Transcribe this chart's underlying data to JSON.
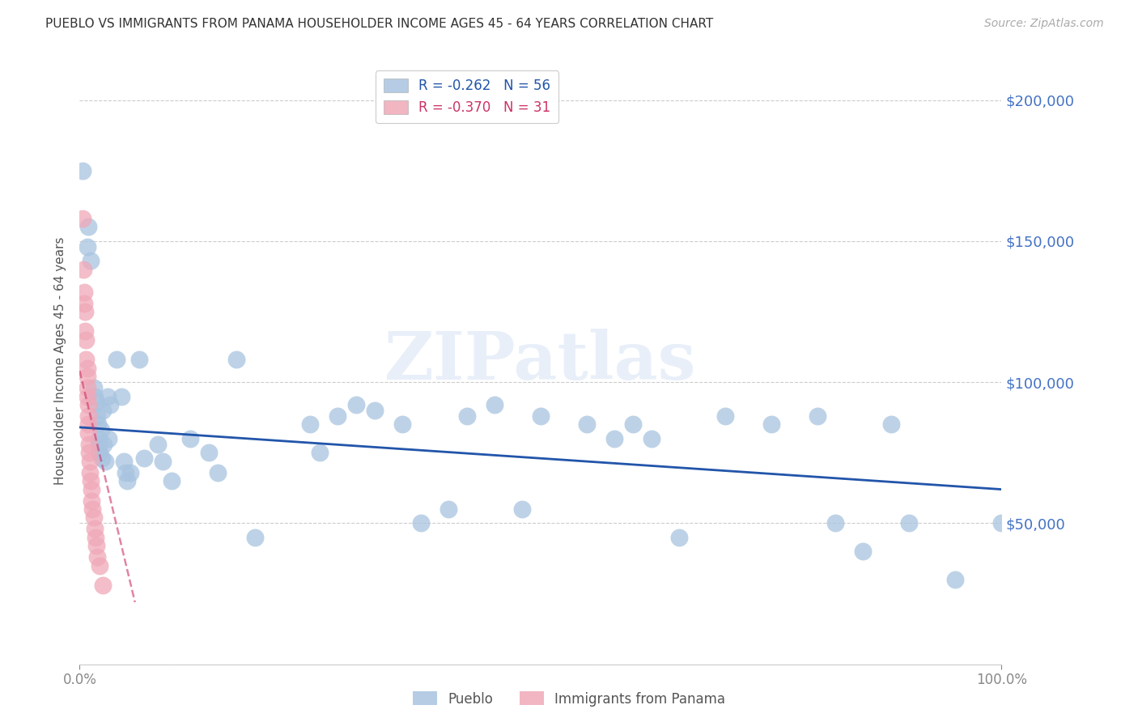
{
  "title": "PUEBLO VS IMMIGRANTS FROM PANAMA HOUSEHOLDER INCOME AGES 45 - 64 YEARS CORRELATION CHART",
  "source": "Source: ZipAtlas.com",
  "ylabel": "Householder Income Ages 45 - 64 years",
  "right_ytick_labels": [
    "$50,000",
    "$100,000",
    "$150,000",
    "$200,000"
  ],
  "right_ytick_positions": [
    50000,
    100000,
    150000,
    200000
  ],
  "pueblo_color": "#a8c4e0",
  "panama_color": "#f0a8b8",
  "trendline_pueblo_color": "#2255aa",
  "trendline_panama_color": "#cc3366",
  "watermark_text": "ZIPatlas",
  "background_color": "#ffffff",
  "grid_color": "#cccccc",
  "title_color": "#333333",
  "right_label_color": "#4472c4",
  "pueblo_scatter": [
    [
      0.003,
      175000
    ],
    [
      0.008,
      148000
    ],
    [
      0.009,
      155000
    ],
    [
      0.012,
      143000
    ],
    [
      0.015,
      98000
    ],
    [
      0.016,
      95000
    ],
    [
      0.018,
      93000
    ],
    [
      0.019,
      88000
    ],
    [
      0.02,
      85000
    ],
    [
      0.021,
      80000
    ],
    [
      0.021,
      78000
    ],
    [
      0.022,
      75000
    ],
    [
      0.023,
      83000
    ],
    [
      0.024,
      73000
    ],
    [
      0.025,
      90000
    ],
    [
      0.026,
      78000
    ],
    [
      0.028,
      72000
    ],
    [
      0.03,
      95000
    ],
    [
      0.031,
      80000
    ],
    [
      0.033,
      92000
    ],
    [
      0.04,
      108000
    ],
    [
      0.045,
      95000
    ],
    [
      0.048,
      72000
    ],
    [
      0.05,
      68000
    ],
    [
      0.051,
      65000
    ],
    [
      0.055,
      68000
    ],
    [
      0.065,
      108000
    ],
    [
      0.07,
      73000
    ],
    [
      0.085,
      78000
    ],
    [
      0.09,
      72000
    ],
    [
      0.1,
      65000
    ],
    [
      0.12,
      80000
    ],
    [
      0.14,
      75000
    ],
    [
      0.15,
      68000
    ],
    [
      0.17,
      108000
    ],
    [
      0.19,
      45000
    ],
    [
      0.25,
      85000
    ],
    [
      0.26,
      75000
    ],
    [
      0.28,
      88000
    ],
    [
      0.3,
      92000
    ],
    [
      0.32,
      90000
    ],
    [
      0.35,
      85000
    ],
    [
      0.37,
      50000
    ],
    [
      0.4,
      55000
    ],
    [
      0.42,
      88000
    ],
    [
      0.45,
      92000
    ],
    [
      0.48,
      55000
    ],
    [
      0.5,
      88000
    ],
    [
      0.55,
      85000
    ],
    [
      0.58,
      80000
    ],
    [
      0.6,
      85000
    ],
    [
      0.62,
      80000
    ],
    [
      0.65,
      45000
    ],
    [
      0.7,
      88000
    ],
    [
      0.75,
      85000
    ],
    [
      0.8,
      88000
    ],
    [
      0.82,
      50000
    ],
    [
      0.85,
      40000
    ],
    [
      0.88,
      85000
    ],
    [
      0.9,
      50000
    ],
    [
      0.95,
      30000
    ],
    [
      1.0,
      50000
    ]
  ],
  "panama_scatter": [
    [
      0.003,
      158000
    ],
    [
      0.004,
      140000
    ],
    [
      0.005,
      132000
    ],
    [
      0.005,
      128000
    ],
    [
      0.006,
      125000
    ],
    [
      0.006,
      118000
    ],
    [
      0.007,
      115000
    ],
    [
      0.007,
      108000
    ],
    [
      0.008,
      105000
    ],
    [
      0.008,
      102000
    ],
    [
      0.008,
      98000
    ],
    [
      0.008,
      95000
    ],
    [
      0.009,
      92000
    ],
    [
      0.009,
      88000
    ],
    [
      0.009,
      85000
    ],
    [
      0.009,
      82000
    ],
    [
      0.01,
      78000
    ],
    [
      0.01,
      75000
    ],
    [
      0.011,
      72000
    ],
    [
      0.011,
      68000
    ],
    [
      0.012,
      65000
    ],
    [
      0.013,
      62000
    ],
    [
      0.013,
      58000
    ],
    [
      0.014,
      55000
    ],
    [
      0.015,
      52000
    ],
    [
      0.016,
      48000
    ],
    [
      0.017,
      45000
    ],
    [
      0.018,
      42000
    ],
    [
      0.019,
      38000
    ],
    [
      0.022,
      35000
    ],
    [
      0.025,
      28000
    ]
  ],
  "pueblo_trend_x": [
    0.0,
    1.0
  ],
  "pueblo_trend_y": [
    84000,
    62000
  ],
  "panama_trend_x": [
    0.0,
    0.06
  ],
  "panama_trend_y": [
    104000,
    22000
  ],
  "xlim": [
    0.0,
    1.0
  ],
  "ylim": [
    0,
    215000
  ],
  "yticks": [
    0,
    50000,
    100000,
    150000,
    200000
  ],
  "xtick_positions": [
    0.0,
    1.0
  ],
  "xtick_labels": [
    "0.0%",
    "100.0%"
  ]
}
